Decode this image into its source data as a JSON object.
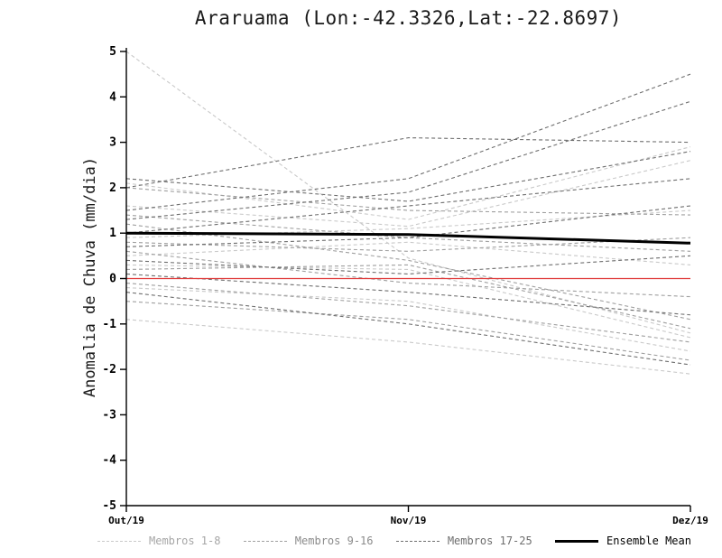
{
  "title": "Araruama (Lon:-42.3326,Lat:-22.8697)",
  "y_axis_label": "Anomalia de Chuva (mm/dia)",
  "legend": [
    {
      "label": "Membros 1-8",
      "color": "#c9c9c9",
      "text_color": "#a6a6a6",
      "style": "dashed"
    },
    {
      "label": "Membros 9-16",
      "color": "#9f9f9f",
      "text_color": "#8b8b8b",
      "style": "dashed"
    },
    {
      "label": "Membros 17-25",
      "color": "#6e6e6e",
      "text_color": "#6e6e6e",
      "style": "dashed"
    },
    {
      "label": "Ensemble Mean",
      "color": "#000000",
      "text_color": "#000000",
      "style": "solid"
    }
  ],
  "chart_data": {
    "type": "line",
    "title": "Araruama (Lon:-42.3326,Lat:-22.8697)",
    "xlabel": "",
    "ylabel": "Anomalia de Chuva (mm/dia)",
    "categories": [
      "Out/19",
      "Nov/19",
      "Dez/19"
    ],
    "ylim": [
      -5,
      5
    ],
    "ytick_step": 1,
    "grid": false,
    "legend_position": "bottom",
    "zero_line_color": "#e03a3a",
    "series": [
      {
        "name": "Membros 1-8",
        "color": "#c9c9c9",
        "dash": true,
        "width": 1.1,
        "members": [
          [
            5.0,
            0.45,
            -1.2
          ],
          [
            2.1,
            1.3,
            2.9
          ],
          [
            1.6,
            1.15,
            2.6
          ],
          [
            0.9,
            1.1,
            1.5
          ],
          [
            0.5,
            0.8,
            0.3
          ],
          [
            0.3,
            0.2,
            -1.3
          ],
          [
            -0.2,
            -0.5,
            -1.6
          ],
          [
            -0.9,
            -1.4,
            -2.1
          ]
        ]
      },
      {
        "name": "Membros 9-16",
        "color": "#9f9f9f",
        "dash": true,
        "width": 1.1,
        "members": [
          [
            2.0,
            1.5,
            1.4
          ],
          [
            1.4,
            0.9,
            0.6
          ],
          [
            1.2,
            0.4,
            -0.9
          ],
          [
            0.8,
            0.6,
            0.9
          ],
          [
            0.6,
            -0.1,
            -0.4
          ],
          [
            0.2,
            0.3,
            -1.1
          ],
          [
            -0.1,
            -0.6,
            -1.4
          ],
          [
            -0.5,
            -0.9,
            -1.8
          ]
        ]
      },
      {
        "name": "Membros 17-25",
        "color": "#6e6e6e",
        "dash": true,
        "width": 1.1,
        "members": [
          [
            2.2,
            1.7,
            2.8
          ],
          [
            2.0,
            3.1,
            3.0
          ],
          [
            1.5,
            2.2,
            4.5
          ],
          [
            1.3,
            1.9,
            3.9
          ],
          [
            1.0,
            1.6,
            2.2
          ],
          [
            0.7,
            0.9,
            1.6
          ],
          [
            0.4,
            0.1,
            0.5
          ],
          [
            0.1,
            -0.3,
            -0.8
          ],
          [
            -0.3,
            -1.0,
            -1.9
          ]
        ]
      },
      {
        "name": "Ensemble Mean",
        "color": "#000000",
        "dash": false,
        "width": 3,
        "members": [
          [
            1.0,
            0.97,
            0.78
          ]
        ]
      }
    ]
  }
}
